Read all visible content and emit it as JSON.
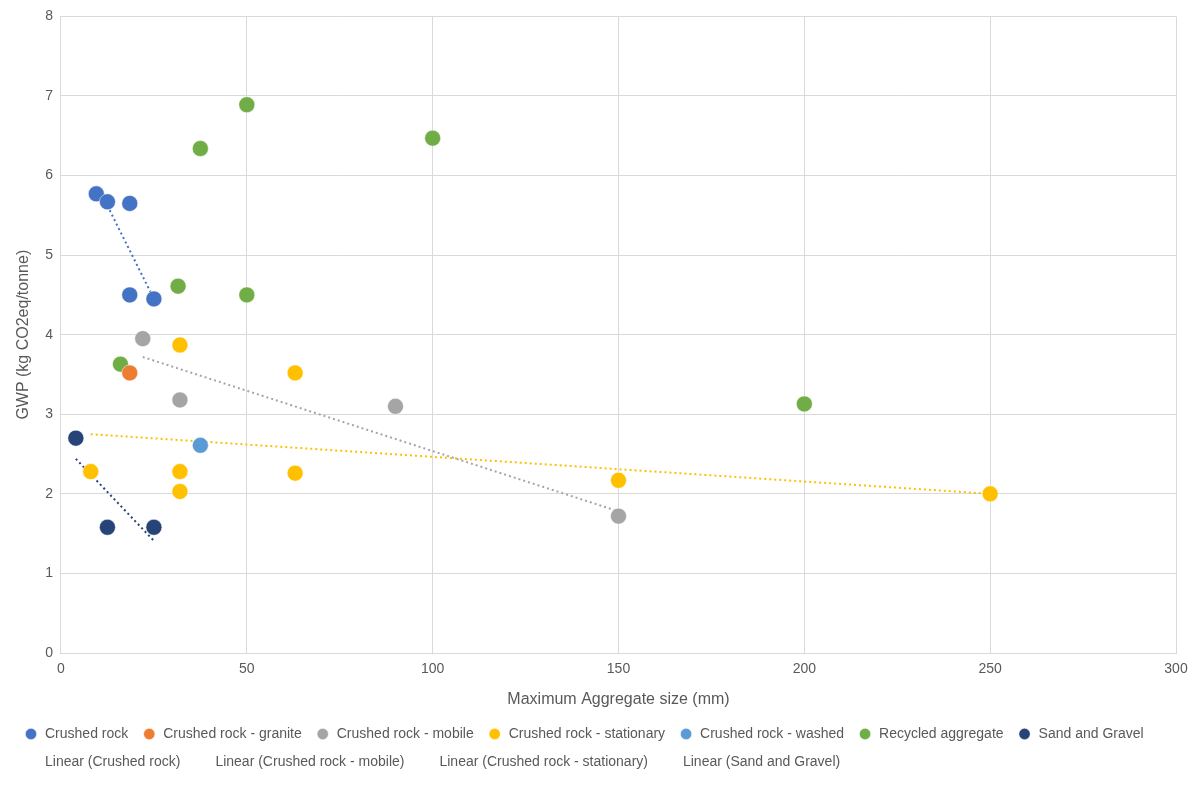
{
  "chart_data": {
    "type": "scatter",
    "x_label": "Maximum Aggregate size (mm)",
    "y_label": "GWP (kg CO2eq/tonne)",
    "xlim": [
      0,
      300
    ],
    "xticks": [
      0,
      50,
      100,
      150,
      200,
      250,
      300
    ],
    "ylim": [
      0,
      8
    ],
    "yticks": [
      0,
      1,
      2,
      3,
      4,
      5,
      6,
      7,
      8
    ],
    "grid": true,
    "legend": "bottom",
    "series": [
      {
        "name": "Crushed rock",
        "type": "scatter",
        "marker": "circle",
        "color": "#4472c4",
        "x": [
          9.5,
          12.5,
          18.5,
          18.5,
          25
        ],
        "values": [
          5.77,
          5.67,
          5.65,
          4.5,
          4.45
        ]
      },
      {
        "name": "Crushed rock - granite",
        "type": "scatter",
        "marker": "circle",
        "color": "#ed7d31",
        "x": [
          18.5
        ],
        "values": [
          3.52
        ]
      },
      {
        "name": "Crushed rock - mobile",
        "type": "scatter",
        "marker": "circle",
        "color": "#a5a5a5",
        "x": [
          22,
          32,
          90,
          150
        ],
        "values": [
          3.95,
          3.18,
          3.1,
          1.72
        ]
      },
      {
        "name": "Crushed rock - stationary",
        "type": "scatter",
        "marker": "circle",
        "color": "#ffc000",
        "x": [
          8,
          32,
          32,
          32,
          63,
          63,
          150,
          250
        ],
        "values": [
          2.28,
          3.87,
          2.28,
          2.03,
          3.52,
          2.26,
          2.17,
          2.0
        ]
      },
      {
        "name": "Crushed rock - washed",
        "type": "scatter",
        "marker": "circle",
        "color": "#5b9bd5",
        "x": [
          37.5
        ],
        "values": [
          2.61
        ]
      },
      {
        "name": "Recycled aggregate",
        "type": "scatter",
        "marker": "circle",
        "color": "#70ad47",
        "x": [
          16,
          31.5,
          37.5,
          50,
          50,
          100,
          200
        ],
        "values": [
          3.63,
          4.61,
          6.34,
          6.89,
          4.5,
          6.47,
          3.13
        ]
      },
      {
        "name": "Sand and Gravel",
        "type": "scatter",
        "marker": "circle",
        "color": "#264478",
        "x": [
          4,
          12.5,
          25
        ],
        "values": [
          2.7,
          1.58,
          1.58
        ]
      },
      {
        "name": "Linear (Crushed rock)",
        "type": "line",
        "marker": "none",
        "line_style": "dotted",
        "color": "#4472c4",
        "x": [
          12.5,
          25
        ],
        "values": [
          5.62,
          4.45
        ]
      },
      {
        "name": "Linear (Crushed rock - mobile)",
        "type": "line",
        "marker": "none",
        "line_style": "dotted",
        "color": "#a5a5a5",
        "x": [
          22,
          150
        ],
        "values": [
          3.72,
          1.78
        ]
      },
      {
        "name": "Linear (Crushed rock - stationary)",
        "type": "line",
        "marker": "none",
        "line_style": "dotted",
        "color": "#ffc000",
        "x": [
          8,
          250
        ],
        "values": [
          2.75,
          2.0
        ]
      },
      {
        "name": "Linear (Sand and Gravel)",
        "type": "line",
        "marker": "none",
        "line_style": "dotted",
        "color": "#264478",
        "x": [
          4,
          25
        ],
        "values": [
          2.44,
          1.41
        ]
      }
    ]
  }
}
